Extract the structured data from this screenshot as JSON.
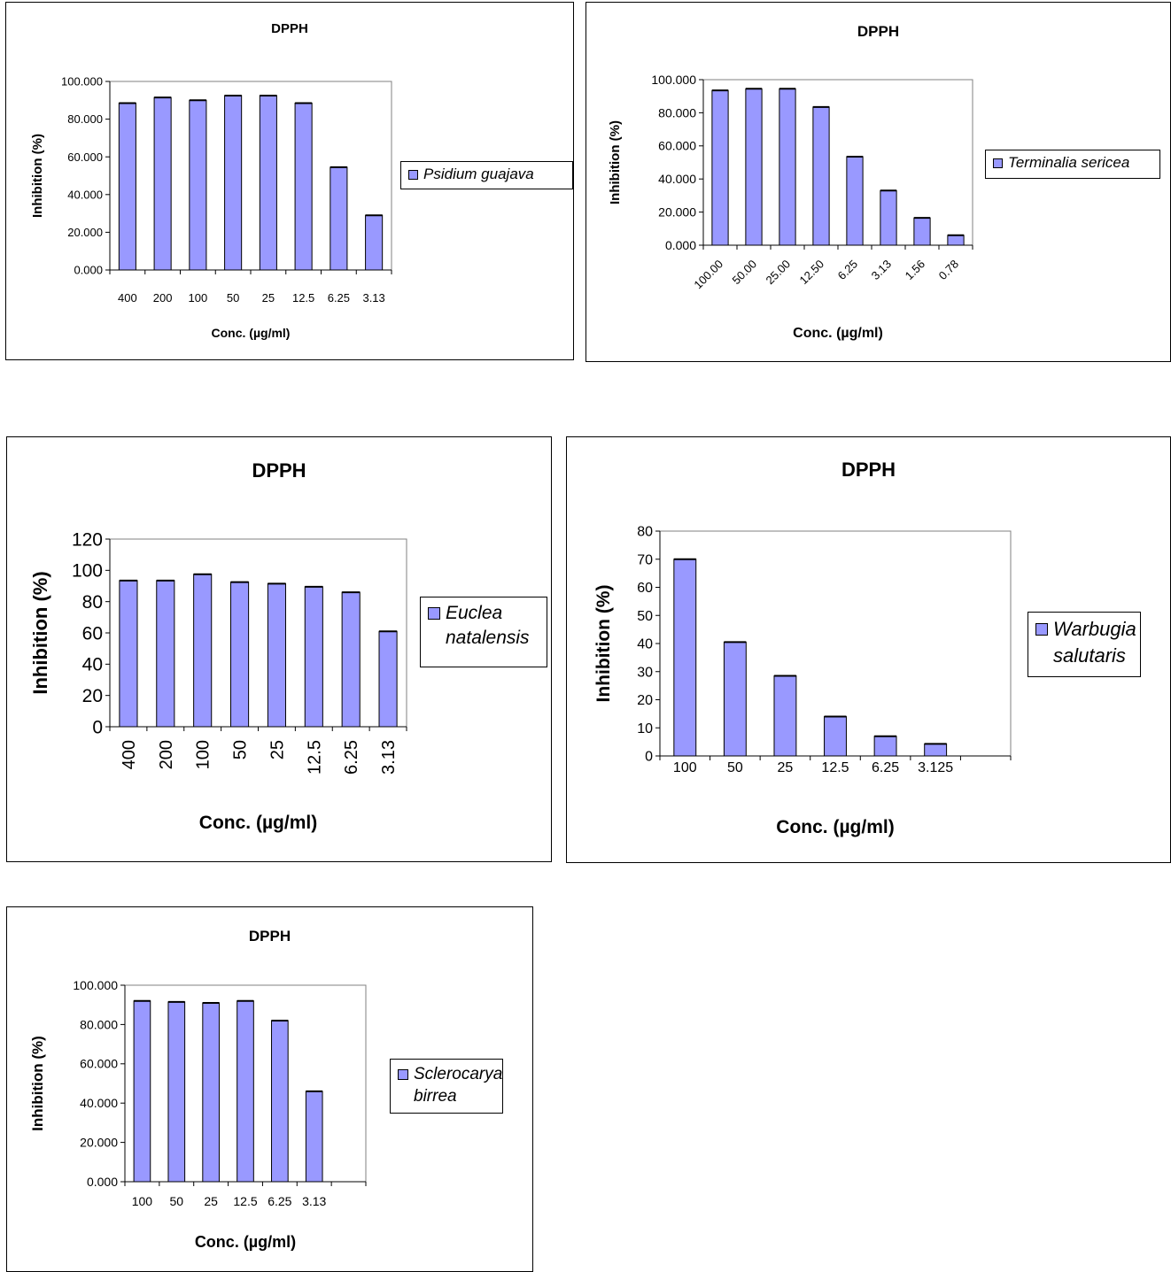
{
  "colors": {
    "bar_fill": "#9999ff",
    "bar_stroke": "#000000",
    "plot_frame": "#808080",
    "axis": "#000000"
  },
  "chart_data": [
    {
      "type": "bar",
      "title": "DPPH",
      "xlabel": "Conc. (µg/ml)",
      "ylabel": "Inhibition (%)",
      "categories": [
        "400",
        "200",
        "100",
        "50",
        "25",
        "12.5",
        "6.25",
        "3.13"
      ],
      "series": [
        {
          "name": "Psidium guajava",
          "values": [
            88.5,
            91.5,
            90.0,
            92.5,
            92.5,
            88.5,
            54.5,
            29.0
          ]
        }
      ],
      "ylim": [
        0,
        100
      ],
      "yticks": [
        "0.000",
        "20.000",
        "40.000",
        "60.000",
        "80.000",
        "100.000"
      ],
      "legend_position": "right",
      "grid": false
    },
    {
      "type": "bar",
      "title": "DPPH",
      "xlabel": "Conc. (µg/ml)",
      "ylabel": "Inhibition (%)",
      "categories": [
        "100.00",
        "50.00",
        "25.00",
        "12.50",
        "6.25",
        "3.13",
        "1.56",
        "0.78"
      ],
      "series": [
        {
          "name": "Terminalia sericea",
          "values": [
            93.5,
            94.5,
            94.5,
            83.5,
            53.5,
            33.0,
            16.5,
            6.0
          ]
        }
      ],
      "ylim": [
        0,
        100
      ],
      "yticks": [
        "0.000",
        "20.000",
        "40.000",
        "60.000",
        "80.000",
        "100.000"
      ],
      "legend_position": "right",
      "grid": false
    },
    {
      "type": "bar",
      "title": "DPPH",
      "xlabel": "Conc. (µg/ml)",
      "ylabel": "Inhibition (%)",
      "categories": [
        "400",
        "200",
        "100",
        "50",
        "25",
        "12.5",
        "6.25",
        "3.13"
      ],
      "series": [
        {
          "name": "Euclea natalensis",
          "values": [
            93.5,
            93.5,
            97.5,
            92.5,
            91.5,
            89.5,
            86.0,
            61.0
          ]
        }
      ],
      "ylim": [
        0,
        120
      ],
      "yticks": [
        "0",
        "20",
        "40",
        "60",
        "80",
        "100",
        "120"
      ],
      "legend_position": "right",
      "grid": false
    },
    {
      "type": "bar",
      "title": "DPPH",
      "xlabel": "Conc. (µg/ml)",
      "ylabel": "Inhibition (%)",
      "categories": [
        "100",
        "50",
        "25",
        "12.5",
        "6.25",
        "3.125",
        ""
      ],
      "series": [
        {
          "name": "Warbugia salutaris",
          "values": [
            70.0,
            40.5,
            28.5,
            14.0,
            7.0,
            4.3,
            null
          ]
        }
      ],
      "ylim": [
        0,
        80
      ],
      "yticks": [
        "0",
        "10",
        "20",
        "30",
        "40",
        "50",
        "60",
        "70",
        "80"
      ],
      "legend_position": "right",
      "grid": false
    },
    {
      "type": "bar",
      "title": "DPPH",
      "xlabel": "Conc. (µg/ml)",
      "ylabel": "Inhibition (%)",
      "categories": [
        "100",
        "50",
        "25",
        "12.5",
        "6.25",
        "3.13",
        ""
      ],
      "series": [
        {
          "name": "Sclerocarya birrea",
          "values": [
            92.0,
            91.5,
            91.0,
            92.0,
            82.0,
            46.0,
            null
          ]
        }
      ],
      "ylim": [
        0,
        100
      ],
      "yticks": [
        "0.000",
        "20.000",
        "40.000",
        "60.000",
        "80.000",
        "100.000"
      ],
      "legend_position": "right",
      "grid": false
    }
  ]
}
